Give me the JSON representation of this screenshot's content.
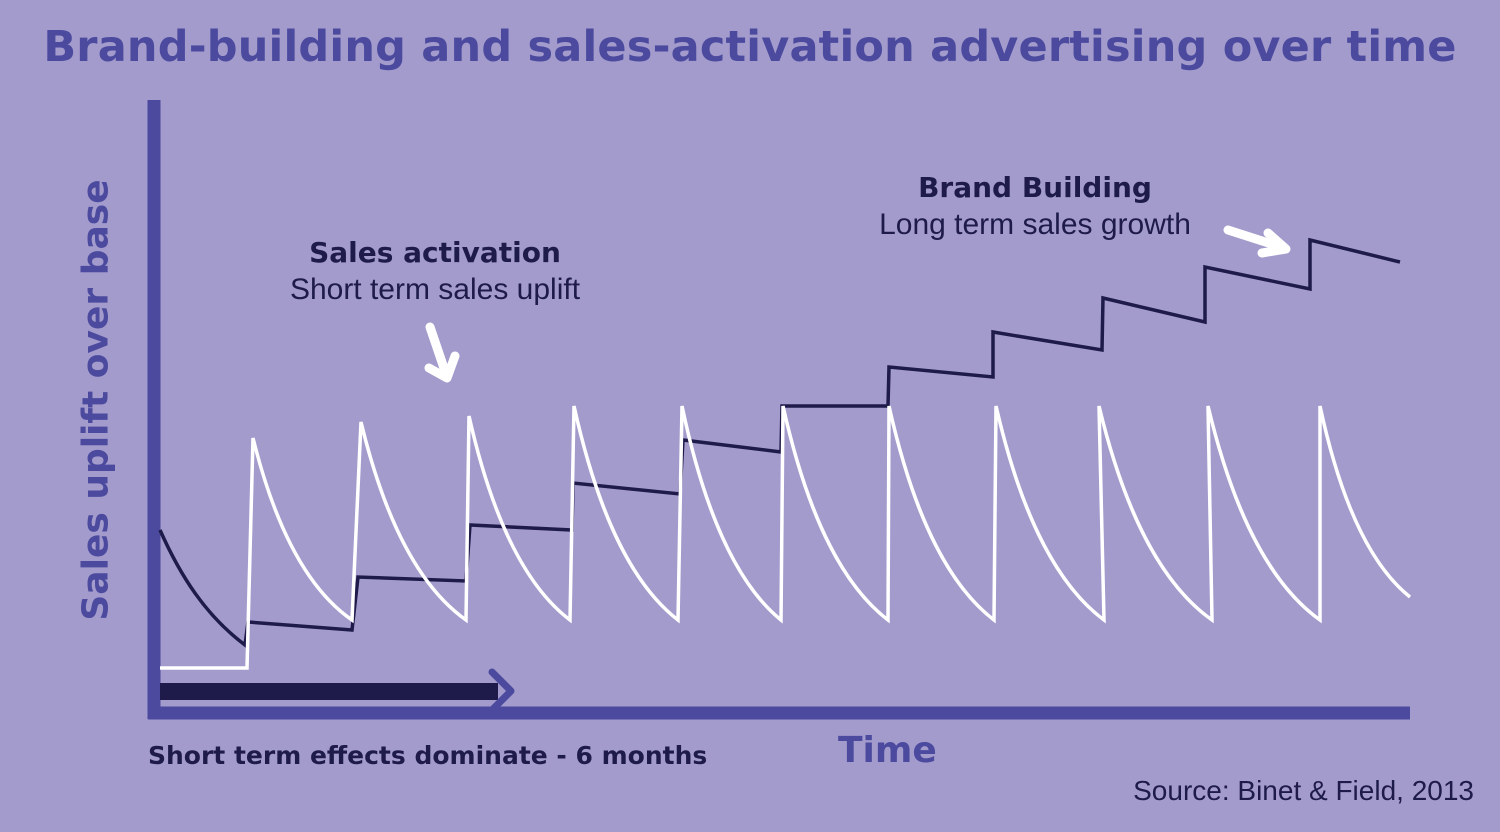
{
  "title": "Brand-building and sales-activation advertising over time",
  "y_axis_label": "Sales uplift over base",
  "x_axis_label": "Time",
  "short_term_note": "Short term effects dominate - 6 months",
  "source": "Source: Binet & Field, 2013",
  "annotations": {
    "sales_activation": {
      "heading": "Sales activation",
      "text": "Short term sales uplift"
    },
    "brand_building": {
      "heading": "Brand Building",
      "text": "Long term sales growth"
    }
  },
  "colors": {
    "background": "#a39bcc",
    "accent": "#4b4a9e",
    "dark_line": "#1e1b4a",
    "activation_line": "#ffffff"
  }
}
